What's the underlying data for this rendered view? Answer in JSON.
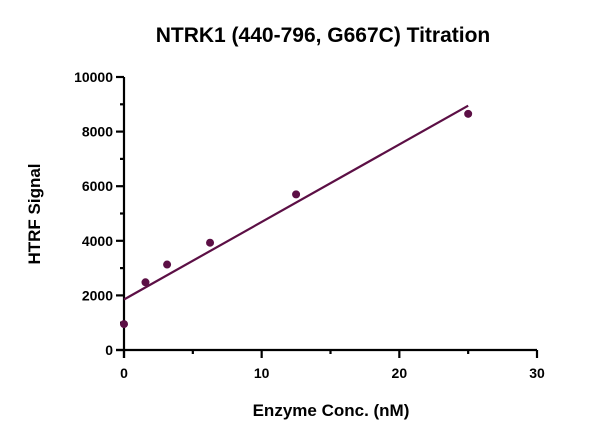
{
  "chart_data": {
    "type": "scatter",
    "title": "NTRK1 (440-796, G667C) Titration",
    "xlabel": "Enzyme Conc. (nM)",
    "ylabel": "HTRF Signal",
    "xlim": [
      0,
      30
    ],
    "ylim": [
      0,
      10000
    ],
    "xticks": [
      "0",
      "10",
      "20",
      "30"
    ],
    "yticks": [
      "0",
      "2000",
      "4000",
      "6000",
      "8000",
      "10000"
    ],
    "grid": false,
    "legend": "none",
    "series": [
      {
        "x": [
          0,
          1.56,
          3.13,
          6.25,
          12.5,
          25
        ],
        "y": [
          950,
          2480,
          3130,
          3930,
          5700,
          8650
        ],
        "color": "#5c0f45"
      }
    ],
    "fit_line": {
      "x": [
        0,
        25
      ],
      "y": [
        1850,
        8950
      ],
      "color": "#5c0f45"
    }
  }
}
